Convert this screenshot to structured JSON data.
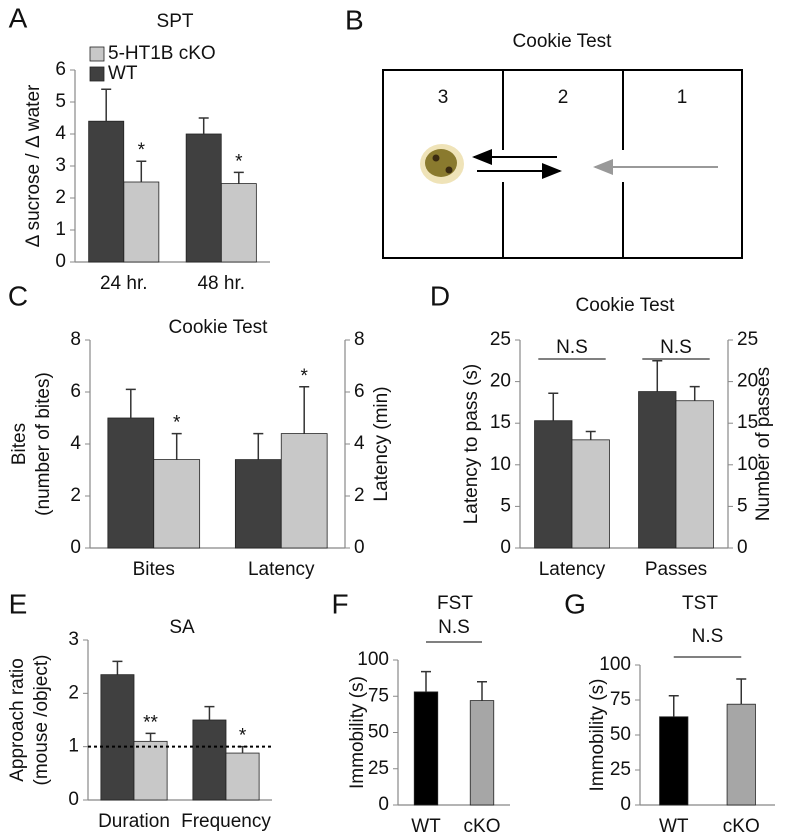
{
  "chart_data": [
    {
      "type": "bar",
      "panel": "A",
      "title": "SPT",
      "ylabel": "Δ sucrose / Δ water",
      "categories": [
        "24 hr.",
        "48 hr."
      ],
      "series": [
        {
          "name": "5-HT1B cKO",
          "color": "#c8c8c8",
          "values": [
            2.5,
            2.45
          ],
          "errors": [
            0.65,
            0.35
          ],
          "significance": [
            "*",
            "*"
          ]
        },
        {
          "name": "WT",
          "color": "#404040",
          "values": [
            4.4,
            4.0
          ],
          "errors": [
            1.0,
            0.5
          ]
        }
      ],
      "ylim": [
        0,
        6
      ],
      "yticks": [
        0,
        1,
        2,
        3,
        4,
        5,
        6
      ],
      "legend": "top-left"
    },
    {
      "type": "bar",
      "panel": "C",
      "title": "Cookie Test",
      "ylabel": [
        "Bites",
        "(number of bites)"
      ],
      "y2label": "Latency (min)",
      "categories": [
        "Bites",
        "Latency"
      ],
      "series": [
        {
          "color": "#404040",
          "values": [
            5.0,
            3.4
          ],
          "errors": [
            1.1,
            1.0
          ]
        },
        {
          "color": "#c8c8c8",
          "values": [
            3.4,
            4.4
          ],
          "errors": [
            1.0,
            1.8
          ],
          "significance": [
            "*",
            "*"
          ]
        }
      ],
      "ylim": [
        0,
        8
      ],
      "yticks": [
        0,
        2,
        4,
        6,
        8
      ],
      "y2lim": [
        0,
        8
      ],
      "y2ticks": [
        0,
        2,
        4,
        6,
        8
      ]
    },
    {
      "type": "bar",
      "panel": "D",
      "title": "Cookie Test",
      "ylabel": "Latency to pass (s)",
      "y2label": "Number of passes",
      "categories": [
        "Latency",
        "Passes"
      ],
      "annotations": [
        "N.S",
        "N.S"
      ],
      "series": [
        {
          "color": "#404040",
          "values": [
            15.3,
            18.8
          ],
          "errors": [
            3.3,
            3.7
          ]
        },
        {
          "color": "#c8c8c8",
          "values": [
            13.0,
            17.7
          ],
          "errors": [
            1.0,
            1.7
          ]
        }
      ],
      "ylim": [
        0,
        25
      ],
      "yticks": [
        0,
        5,
        10,
        15,
        20,
        25
      ],
      "y2lim": [
        0,
        25
      ],
      "y2ticks": [
        0,
        5,
        10,
        15,
        20,
        25
      ]
    },
    {
      "type": "bar",
      "panel": "E",
      "title": "SA",
      "ylabel": [
        "Approach ratio",
        "(mouse /object)"
      ],
      "categories": [
        "Duration",
        "Frequency"
      ],
      "refline": 1,
      "series": [
        {
          "color": "#404040",
          "values": [
            2.35,
            1.5
          ],
          "errors": [
            0.25,
            0.25
          ]
        },
        {
          "color": "#c8c8c8",
          "values": [
            1.1,
            0.88
          ],
          "errors": [
            0.15,
            0.12
          ],
          "significance": [
            "**",
            "*"
          ]
        }
      ],
      "ylim": [
        0,
        3
      ],
      "yticks": [
        0,
        1,
        2,
        3
      ]
    },
    {
      "type": "bar",
      "panel": "F",
      "title": "FST",
      "ylabel": "Immobility (s)",
      "annotation": "N.S",
      "categories": [
        "WT",
        "cKO"
      ],
      "values": [
        78,
        72
      ],
      "errors": [
        14,
        13
      ],
      "colors": [
        "#000000",
        "#a6a6a6"
      ],
      "ylim": [
        0,
        100
      ],
      "yticks": [
        0,
        25,
        50,
        75,
        100
      ]
    },
    {
      "type": "bar",
      "panel": "G",
      "title": "TST",
      "ylabel": "Immobility (s)",
      "annotation": "N.S",
      "categories": [
        "WT",
        "cKO"
      ],
      "values": [
        63,
        72
      ],
      "errors": [
        15,
        18
      ],
      "colors": [
        "#000000",
        "#a6a6a6"
      ],
      "ylim": [
        0,
        100
      ],
      "yticks": [
        0,
        25,
        50,
        75,
        100
      ]
    }
  ],
  "diagram": {
    "panel": "B",
    "title": "Cookie Test",
    "zones": [
      "3",
      "2",
      "1"
    ]
  }
}
